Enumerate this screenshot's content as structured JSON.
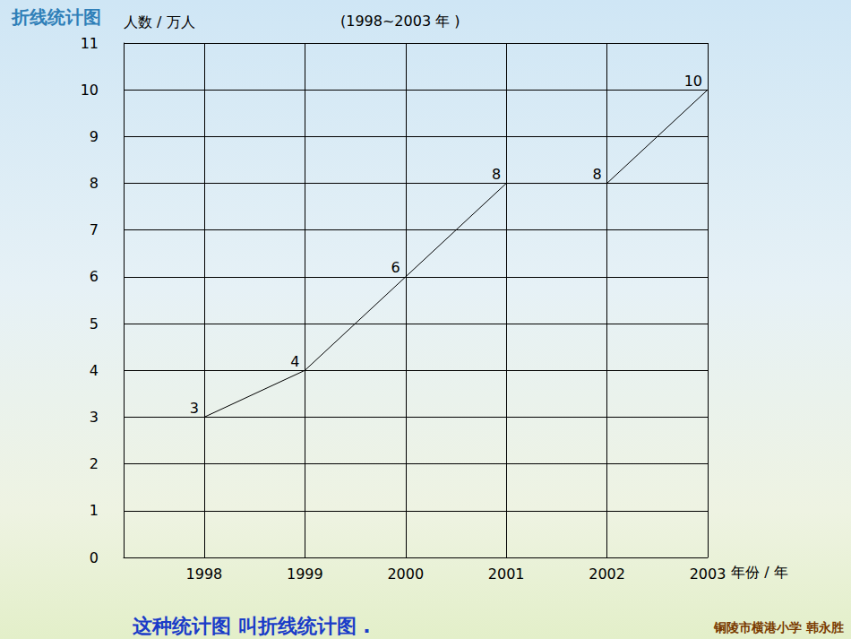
{
  "chart_data": {
    "type": "line",
    "title": "折线统计图",
    "subtitle": "(1998~2003 年 )",
    "x_label": "年份 / 年",
    "y_label": "人数 / 万人",
    "x": [
      1998,
      1999,
      2000,
      2001,
      2002,
      2003
    ],
    "values": [
      3,
      4,
      6,
      8,
      8,
      10
    ],
    "color": "#000000",
    "xlim": [
      1997.2,
      2003
    ],
    "xticks": [
      1998,
      1999,
      2000,
      2001,
      2002,
      2003
    ],
    "ylim": [
      0,
      11
    ],
    "yticks": [
      0,
      1,
      2,
      3,
      4,
      5,
      6,
      7,
      8,
      9,
      10,
      11
    ],
    "grid": true,
    "data_labels": true,
    "annotations": [
      "这种统计图 叫折线统计图 .",
      "铜陵市横港小学 韩永胜"
    ]
  }
}
